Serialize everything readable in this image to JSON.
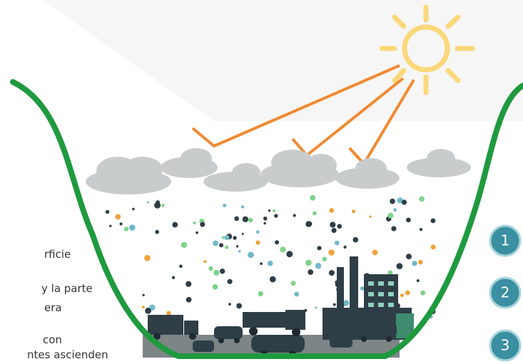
{
  "text_lines": [
    "rficie",
    "y la parte",
    "era",
    "con",
    "ntes ascienden"
  ],
  "steps": [
    "1",
    "2",
    "3"
  ]
}
